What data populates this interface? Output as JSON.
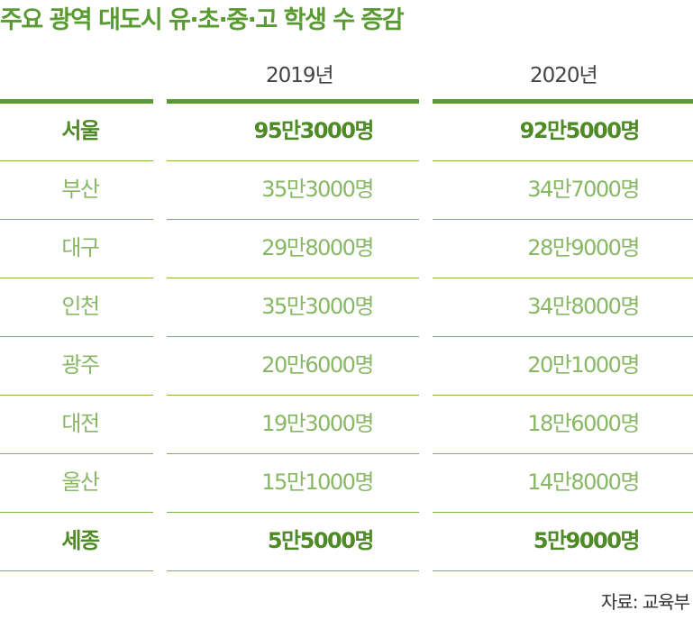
{
  "title": "주요 광역 대도시 유·초·중·고 학생 수 증감",
  "columns": [
    "2019년",
    "2020년"
  ],
  "rows": [
    {
      "city": "서울",
      "y2019": "95만3000명",
      "y2020": "92만5000명",
      "emphasis": true
    },
    {
      "city": "부산",
      "y2019": "35만3000명",
      "y2020": "34만7000명",
      "emphasis": false
    },
    {
      "city": "대구",
      "y2019": "29만8000명",
      "y2020": "28만9000명",
      "emphasis": false
    },
    {
      "city": "인천",
      "y2019": "35만3000명",
      "y2020": "34만8000명",
      "emphasis": false
    },
    {
      "city": "광주",
      "y2019": "20만6000명",
      "y2020": "20만1000명",
      "emphasis": false
    },
    {
      "city": "대전",
      "y2019": "19만3000명",
      "y2020": "18만6000명",
      "emphasis": false
    },
    {
      "city": "울산",
      "y2019": "15만1000명",
      "y2020": "14만8000명",
      "emphasis": false
    },
    {
      "city": "세종",
      "y2019": "5만5000명",
      "y2020": "5만9000명",
      "emphasis": true
    }
  ],
  "source": "자료: 교육부",
  "colors": {
    "accent": "#5a9a32",
    "emphasis_text": "#4e8a25",
    "normal_text": "#88b866",
    "row_line": "#7cb24f"
  }
}
